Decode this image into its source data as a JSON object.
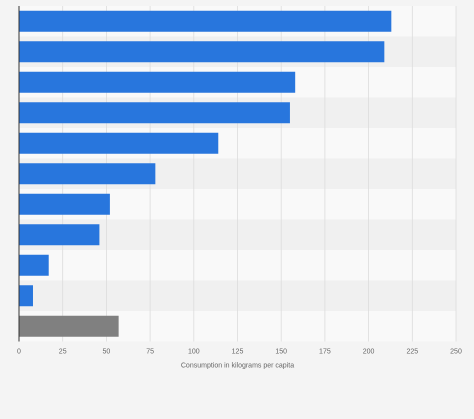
{
  "chart_data": {
    "type": "bar",
    "orientation": "horizontal",
    "categories": [
      "",
      "",
      "",
      "",
      "",
      "",
      "",
      "",
      "",
      "",
      ""
    ],
    "values": [
      213,
      209,
      158,
      155,
      114,
      78,
      52,
      46,
      17,
      8,
      57
    ],
    "bar_colors": [
      "#2876dd",
      "#2876dd",
      "#2876dd",
      "#2876dd",
      "#2876dd",
      "#2876dd",
      "#2876dd",
      "#2876dd",
      "#2876dd",
      "#2876dd",
      "#808080"
    ],
    "title": "",
    "xlabel": "Consumption in kilograms per capita",
    "ylabel": "",
    "xlim": [
      0,
      250
    ],
    "xticks": [
      0,
      25,
      50,
      75,
      100,
      125,
      150,
      175,
      200,
      225,
      250
    ],
    "grid": true
  },
  "colors": {
    "page_background": "#f4f4f4",
    "band_light": "#f9f9f9",
    "band_dark": "#f0f0f0",
    "grid": "#dcdcdc",
    "axis": "#333333",
    "tick_text": "#666666"
  }
}
